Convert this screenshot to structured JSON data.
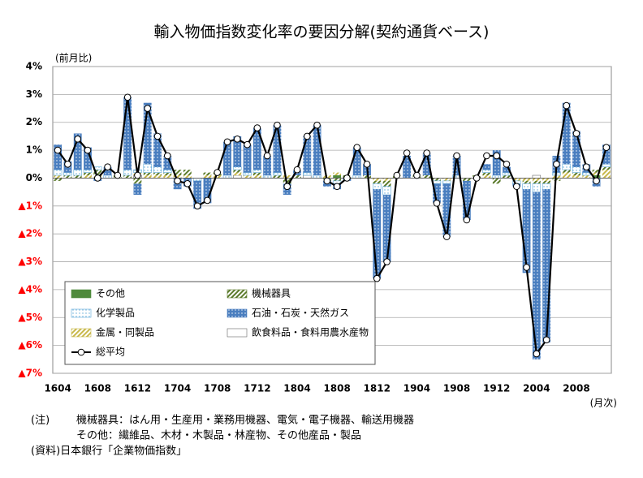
{
  "chart_data": {
    "type": "bar",
    "title": "輸入物価指数変化率の要因分解(契約通貨ベース)",
    "y_label": "(前月比)",
    "x_label": "(月次)",
    "categories": [
      "1604",
      null,
      null,
      null,
      "1608",
      null,
      null,
      null,
      "1612",
      null,
      null,
      null,
      "1704",
      null,
      null,
      null,
      "1708",
      null,
      null,
      null,
      "1712",
      null,
      null,
      null,
      "1804",
      null,
      null,
      null,
      "1808",
      null,
      null,
      null,
      "1812",
      null,
      null,
      null,
      "1904",
      null,
      null,
      null,
      "1908",
      null,
      null,
      null,
      "1912",
      null,
      null,
      null,
      "2004",
      null,
      null,
      null,
      "2008",
      null,
      null,
      null
    ],
    "ylim": [
      -7,
      4
    ],
    "yticks": [
      {
        "value": 4,
        "label": "4%"
      },
      {
        "value": 3,
        "label": "3%"
      },
      {
        "value": 2,
        "label": "2%"
      },
      {
        "value": 1,
        "label": "1%"
      },
      {
        "value": 0,
        "label": "0%"
      },
      {
        "value": -1,
        "label": "▲1%"
      },
      {
        "value": -2,
        "label": "▲2%"
      },
      {
        "value": -3,
        "label": "▲3%"
      },
      {
        "value": -4,
        "label": "▲4%"
      },
      {
        "value": -5,
        "label": "▲5%"
      },
      {
        "value": -6,
        "label": "▲6%"
      },
      {
        "value": -7,
        "label": "▲7%"
      }
    ],
    "negative_tick_color": "#ff0000",
    "grid": true,
    "legend": "lower left",
    "series": [
      {
        "name": "その他",
        "color": "#4f8a3c",
        "pattern": "solid",
        "values": [
          0,
          0,
          0,
          0,
          0,
          0,
          0,
          0,
          0,
          0,
          0,
          0,
          0,
          0,
          0,
          0,
          0,
          0,
          0,
          0,
          0,
          0,
          0,
          0,
          0,
          0,
          0,
          0,
          0.1,
          0,
          0,
          0,
          0,
          0,
          0,
          0,
          0,
          0,
          0,
          0,
          0,
          0,
          0,
          0,
          0,
          0,
          0,
          0,
          0,
          0,
          0,
          0,
          0,
          0,
          0.1,
          0
        ]
      },
      {
        "name": "機械器具",
        "color": "#5a7a2a",
        "pattern": "hatch",
        "values": [
          -0.1,
          0.1,
          0.1,
          0.1,
          0.2,
          0,
          0.1,
          0.1,
          -0.2,
          0.1,
          0.1,
          0.1,
          0.2,
          0.2,
          0,
          0.1,
          0.1,
          0,
          0.1,
          0,
          0.1,
          0,
          0.1,
          -0.2,
          0.1,
          0,
          0,
          -0.1,
          -0.1,
          0.1,
          0,
          0.1,
          -0.1,
          -0.2,
          0.1,
          0,
          0.1,
          0.1,
          -0.1,
          0,
          0,
          -0.1,
          0.1,
          0.1,
          -0.2,
          0.1,
          0,
          -0.1,
          -0.1,
          -0.1,
          -0.1,
          0.1,
          0.1,
          0,
          0.1,
          0.1
        ]
      },
      {
        "name": "化学製品",
        "color": "#5ba8d8",
        "pattern": "lightdots",
        "values": [
          0.2,
          0.1,
          0.2,
          0.1,
          0.1,
          0.1,
          0,
          0.2,
          0.1,
          0.3,
          0.2,
          0.1,
          0,
          0,
          -0.1,
          0,
          0,
          0.1,
          0.1,
          0.1,
          0.1,
          0.1,
          0.1,
          0,
          0,
          0.1,
          0.1,
          0,
          -0.1,
          0,
          0.1,
          0,
          -0.2,
          -0.3,
          0,
          0,
          0,
          0,
          -0.1,
          -0.1,
          0.1,
          0,
          0,
          0.1,
          0.1,
          0.1,
          -0.1,
          -0.2,
          -0.3,
          -0.2,
          0.1,
          0.2,
          0.2,
          0.1,
          0,
          0.1
        ]
      },
      {
        "name": "石油・石炭・天然ガス",
        "color": "#4a7ebf",
        "pattern": "dots",
        "values": [
          0.9,
          0.4,
          1.3,
          0.8,
          -0.1,
          0.3,
          0,
          2.6,
          -0.4,
          2.2,
          1.2,
          0.5,
          -0.4,
          -0.3,
          -1.0,
          -0.9,
          0,
          1.2,
          1.1,
          1.0,
          1.5,
          0.7,
          1.7,
          -0.4,
          0.2,
          1.3,
          1.8,
          -0.2,
          -0.2,
          -0.1,
          1.0,
          0.4,
          -3.2,
          -2.4,
          0,
          0.8,
          0,
          0.8,
          -0.7,
          -1.9,
          0.7,
          -1.4,
          0,
          0.2,
          0.9,
          0.2,
          -0.1,
          -3.0,
          -6.0,
          -5.5,
          0.6,
          2.2,
          1.3,
          0.3,
          -0.3,
          0.7
        ]
      },
      {
        "name": "金属・同製品",
        "color": "#c8b84a",
        "pattern": "hatch",
        "values": [
          0.1,
          0,
          0,
          0.1,
          0.1,
          0,
          0,
          0,
          0.1,
          0.1,
          0.1,
          0.1,
          0.1,
          0.1,
          0,
          0.1,
          0.1,
          0,
          0.1,
          0.1,
          0.1,
          0,
          0,
          0.1,
          0,
          0,
          0,
          0.1,
          0.1,
          0,
          0,
          0,
          -0.1,
          -0.1,
          0,
          0,
          0,
          0,
          0,
          -0.1,
          0,
          0,
          0,
          0.1,
          0,
          0,
          -0.1,
          -0.1,
          -0.1,
          -0.1,
          0.1,
          0.2,
          0.1,
          0.1,
          0.1,
          0.3
        ]
      },
      {
        "name": "飲食料品・食料用農水産物",
        "color": "#ffffff",
        "pattern": "solid",
        "values": [
          0,
          0,
          0,
          0,
          0,
          0,
          0,
          0,
          0.1,
          0,
          0,
          0,
          0,
          0,
          0,
          0,
          0,
          0,
          0.1,
          0,
          0,
          0,
          0,
          0,
          0,
          0.1,
          0,
          0,
          0,
          0,
          0,
          0,
          0,
          0,
          0,
          0,
          0,
          0,
          0,
          0,
          0,
          0,
          0,
          0,
          0,
          0,
          0,
          0,
          0.1,
          0,
          0,
          0,
          0,
          0,
          0,
          0
        ]
      },
      {
        "name": "総平均",
        "color": "#000000",
        "type": "line",
        "values": [
          1.0,
          0.5,
          1.4,
          1.0,
          0,
          0.4,
          0.1,
          2.9,
          0.1,
          2.5,
          1.5,
          0.8,
          -0.1,
          -0.2,
          -1.0,
          -0.8,
          0.2,
          1.3,
          1.4,
          1.2,
          1.8,
          0.8,
          1.9,
          -0.3,
          0.3,
          1.5,
          1.9,
          -0.1,
          -0.3,
          0,
          1.1,
          0.5,
          -3.6,
          -3.0,
          0.1,
          0.9,
          0.1,
          0.9,
          -0.9,
          -2.1,
          0.8,
          -1.5,
          0,
          0.8,
          0.8,
          0.5,
          -0.3,
          -3.2,
          -6.3,
          -5.8,
          0.5,
          2.6,
          1.6,
          0.4,
          -0.1,
          1.1
        ]
      }
    ],
    "notes": [
      "(注)",
      "機械器具：はん用・生産用・業務用機器、電気・電子機器、輸送用機器",
      "その他：繊維品、木材・木製品・林産物、その他産品・製品",
      "(資料)日本銀行「企業物価指数」"
    ]
  }
}
